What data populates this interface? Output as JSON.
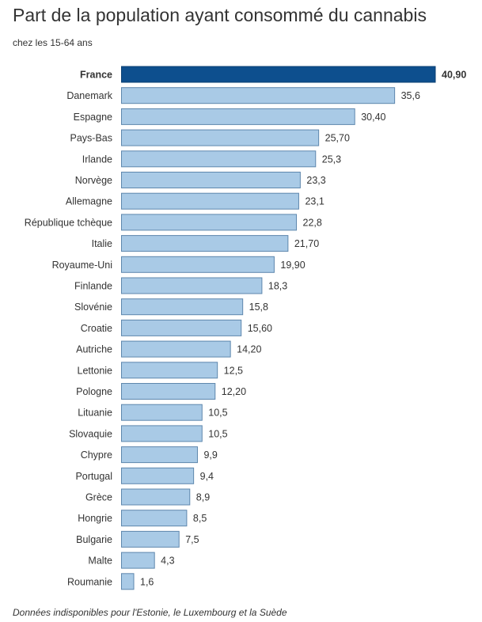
{
  "title": "Part de la population ayant consommé du cannabis",
  "subtitle": "chez les 15-64 ans",
  "footnote": "Données indisponibles pour l'Estonie, le Luxembourg et la Suède",
  "chart_data": {
    "type": "bar",
    "orientation": "horizontal",
    "categories": [
      "France",
      "Danemark",
      "Espagne",
      "Pays-Bas",
      "Irlande",
      "Norvège",
      "Allemagne",
      "République tchèque",
      "Italie",
      "Royaume-Uni",
      "Finlande",
      "Slovénie",
      "Croatie",
      "Autriche",
      "Lettonie",
      "Pologne",
      "Lituanie",
      "Slovaquie",
      "Chypre",
      "Portugal",
      "Grèce",
      "Hongrie",
      "Bulgarie",
      "Malte",
      "Roumanie"
    ],
    "values": [
      40.9,
      35.6,
      30.4,
      25.7,
      25.3,
      23.3,
      23.1,
      22.8,
      21.7,
      19.9,
      18.3,
      15.8,
      15.6,
      14.2,
      12.5,
      12.2,
      10.5,
      10.5,
      9.9,
      9.4,
      8.9,
      8.5,
      7.5,
      4.3,
      1.6
    ],
    "labels": [
      "40,90",
      "35,6",
      "30,40",
      "25,70",
      "25,3",
      "23,3",
      "23,1",
      "22,8",
      "21,70",
      "19,90",
      "18,3",
      "15,8",
      "15,60",
      "14,20",
      "12,5",
      "12,20",
      "10,5",
      "10,5",
      "9,9",
      "9,4",
      "8,9",
      "8,5",
      "7,5",
      "4,3",
      "1,6"
    ],
    "highlight": "France",
    "colors": {
      "bar": "#a9cae6",
      "bar_stroke": "#5e87ad",
      "highlight": "#0d4f8e",
      "highlight_stroke": "#0a3f73"
    },
    "xlim": [
      0,
      40.9
    ],
    "grid": false,
    "legend": "none"
  }
}
